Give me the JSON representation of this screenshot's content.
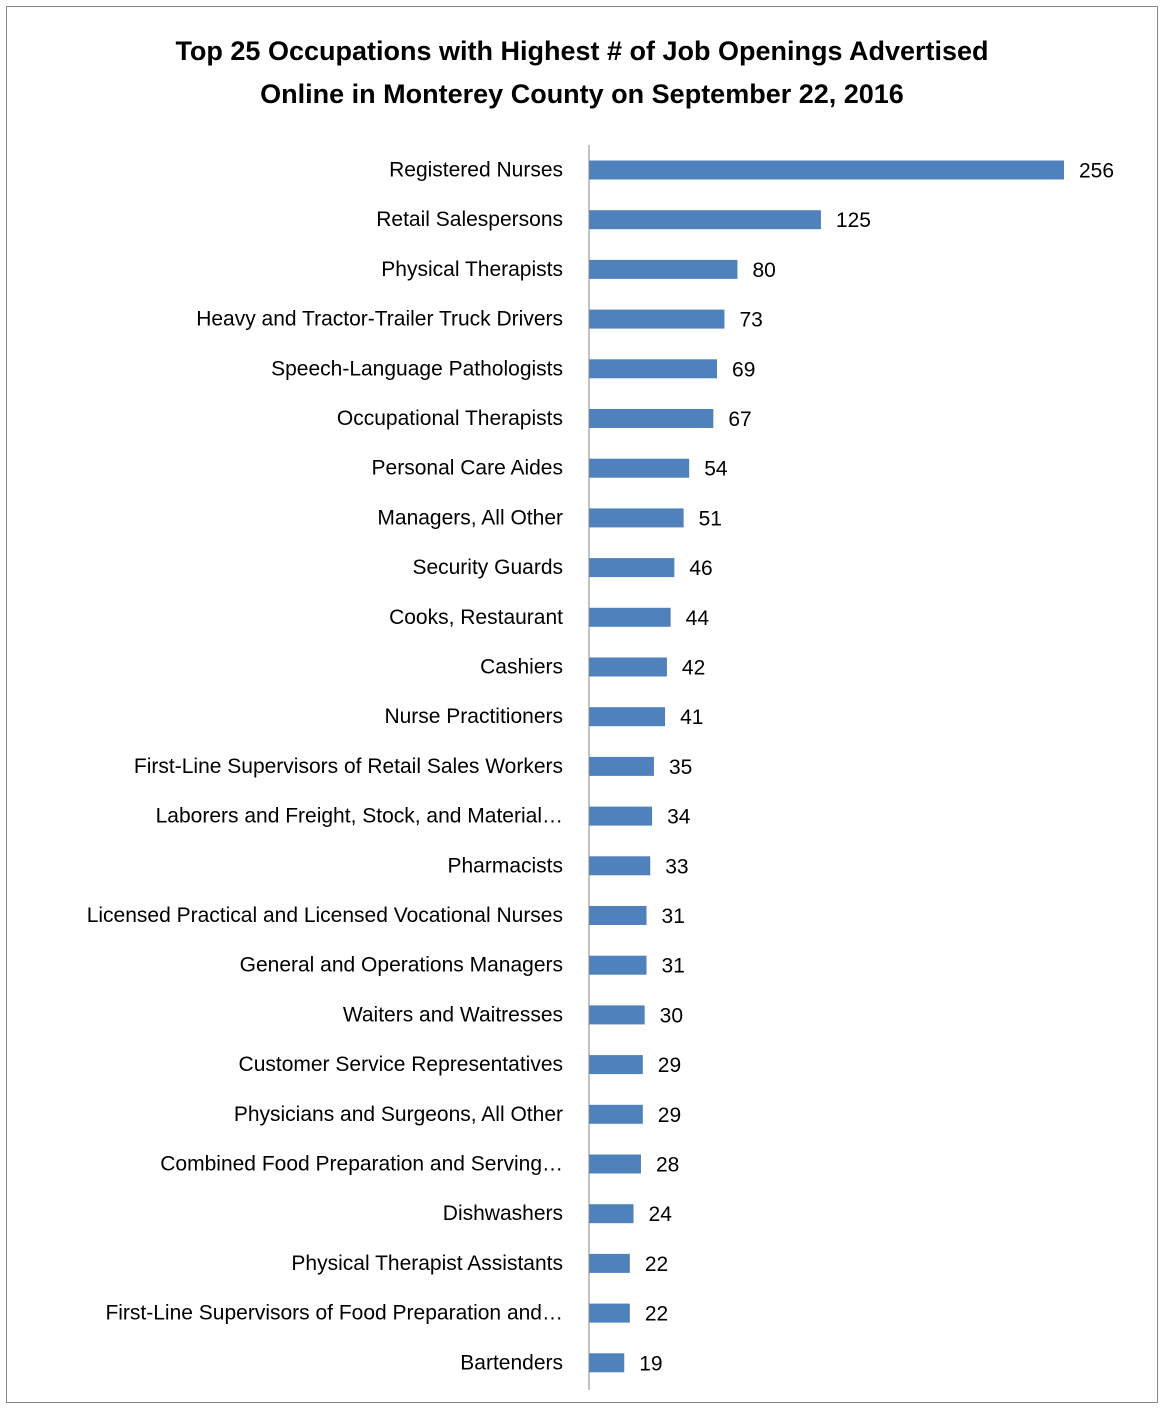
{
  "chart_data": {
    "type": "bar",
    "orientation": "horizontal",
    "title_lines": [
      "Top 25 Occupations with Highest # of Job Openings Advertised",
      "Online in Monterey County on September 22, 2016"
    ],
    "categories": [
      "Registered Nurses",
      "Retail Salespersons",
      "Physical Therapists",
      "Heavy and Tractor-Trailer Truck Drivers",
      "Speech-Language Pathologists",
      "Occupational Therapists",
      "Personal Care Aides",
      "Managers, All Other",
      "Security Guards",
      "Cooks, Restaurant",
      "Cashiers",
      "Nurse Practitioners",
      "First-Line Supervisors of Retail Sales Workers",
      "Laborers and Freight, Stock, and Material…",
      "Pharmacists",
      "Licensed Practical and Licensed Vocational Nurses",
      "General and Operations Managers",
      "Waiters and Waitresses",
      "Customer Service Representatives",
      "Physicians and Surgeons, All Other",
      "Combined Food Preparation and Serving…",
      "Dishwashers",
      "Physical Therapist Assistants",
      "First-Line Supervisors of Food Preparation and…",
      "Bartenders"
    ],
    "values": [
      256,
      125,
      80,
      73,
      69,
      67,
      54,
      51,
      46,
      44,
      42,
      41,
      35,
      34,
      33,
      31,
      31,
      30,
      29,
      29,
      28,
      24,
      22,
      22,
      19
    ],
    "xlim": [
      0,
      256
    ],
    "data_labels": true,
    "gridlines": false,
    "legend": "none",
    "bar_color": "#4f81bd",
    "axis_color": "#868686"
  }
}
